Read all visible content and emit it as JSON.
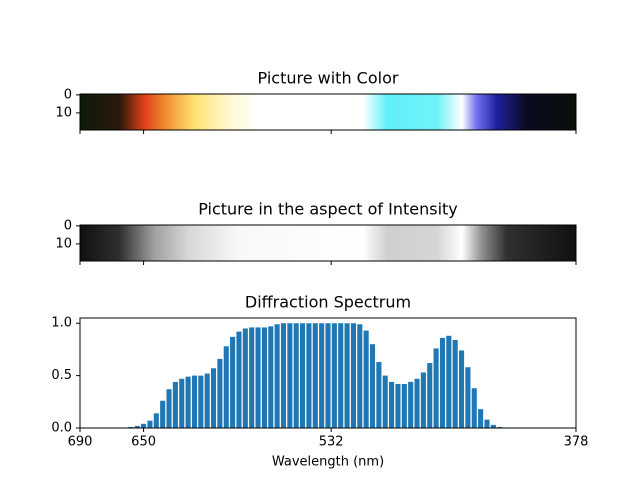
{
  "chart_data": [
    {
      "type": "image",
      "title": "Picture with Color",
      "ylim": [
        19.5,
        -0.5
      ],
      "yticks": [
        0,
        10
      ],
      "palette": "color"
    },
    {
      "type": "image",
      "title": "Picture in the aspect of Intensity",
      "ylim": [
        19.5,
        -0.5
      ],
      "yticks": [
        0,
        10
      ],
      "palette": "gray"
    },
    {
      "type": "bar",
      "title": "Diffraction Spectrum",
      "xlabel": "Wavelength (nm)",
      "color": "#1f77b4",
      "xlim": [
        690,
        378
      ],
      "xticks": [
        690,
        650,
        532,
        378
      ],
      "ylim": [
        0,
        1.05
      ],
      "yticks": [
        0.0,
        0.5,
        1.0
      ],
      "x": [
        690,
        686,
        682,
        678,
        674,
        670,
        666,
        662,
        658,
        654,
        650,
        646,
        642,
        638,
        634,
        630,
        626,
        622,
        618,
        614,
        610,
        606,
        602,
        598,
        594,
        590,
        586,
        582,
        578,
        574,
        570,
        566,
        562,
        558,
        554,
        550,
        546,
        542,
        538,
        534,
        530,
        526,
        522,
        518,
        514,
        510,
        506,
        502,
        498,
        494,
        490,
        486,
        482,
        478,
        474,
        470,
        466,
        462,
        458,
        454,
        450,
        446,
        442,
        438,
        434,
        430,
        426,
        422,
        418,
        414,
        410,
        406,
        402,
        398,
        394,
        390,
        386,
        382,
        378
      ],
      "values": [
        0,
        0,
        0,
        0,
        0,
        0,
        0,
        0,
        0.01,
        0.02,
        0.04,
        0.07,
        0.14,
        0.26,
        0.37,
        0.44,
        0.47,
        0.49,
        0.5,
        0.5,
        0.52,
        0.57,
        0.66,
        0.78,
        0.87,
        0.92,
        0.95,
        0.96,
        0.96,
        0.96,
        0.97,
        0.99,
        1.0,
        1.0,
        1.0,
        1.0,
        1.0,
        1.0,
        1.0,
        1.0,
        1.0,
        1.0,
        1.0,
        1.0,
        0.99,
        0.93,
        0.8,
        0.63,
        0.5,
        0.44,
        0.42,
        0.42,
        0.44,
        0.47,
        0.53,
        0.62,
        0.76,
        0.86,
        0.88,
        0.84,
        0.74,
        0.58,
        0.38,
        0.18,
        0.08,
        0.03,
        0.01,
        0,
        0,
        0,
        0,
        0,
        0,
        0,
        0,
        0,
        0,
        0,
        0
      ]
    }
  ]
}
